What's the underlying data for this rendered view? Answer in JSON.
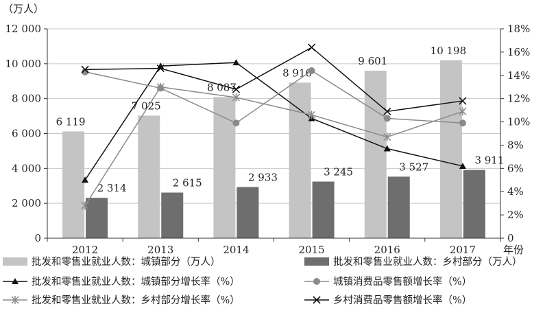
{
  "chart_data": {
    "type": "bar+line",
    "unit_label": "（万人）",
    "xlabel": "年份",
    "categories": [
      "2012",
      "2013",
      "2014",
      "2015",
      "2016",
      "2017"
    ],
    "y_left": {
      "lim": [
        0,
        12000
      ],
      "ticks": [
        "0",
        "2 000",
        "4 000",
        "6 000",
        "8 000",
        "10 000",
        "12 000"
      ],
      "values": [
        0,
        2000,
        4000,
        6000,
        8000,
        10000,
        12000
      ]
    },
    "y_right": {
      "lim": [
        0,
        18
      ],
      "ticks": [
        "0",
        "2%",
        "4%",
        "6%",
        "8%",
        "10%",
        "12%",
        "14%",
        "16%",
        "18%"
      ],
      "values": [
        0,
        2,
        4,
        6,
        8,
        10,
        12,
        14,
        16,
        18
      ]
    },
    "bar_series": [
      {
        "name": "批发和零售业就业人数：城镇部分（万人）",
        "color": "#c4c4c4",
        "values": [
          6119,
          7025,
          8087,
          8916,
          9601,
          10198
        ],
        "labels": [
          "6 119",
          "7 025",
          "8 087",
          "8 916",
          "9 601",
          "10 198"
        ]
      },
      {
        "name": "批发和零售业就业人数：乡村部分（万人）",
        "color": "#6e6e6e",
        "values": [
          2314,
          2615,
          2933,
          3245,
          3527,
          3911
        ],
        "labels": [
          "2 314",
          "2 615",
          "2 933",
          "3 245",
          "3 527",
          "3 911"
        ]
      }
    ],
    "line_series": [
      {
        "name": "批发和零售业就业人数：城镇部分增长率（%）",
        "color": "#111111",
        "marker": "triangle",
        "values": [
          5.0,
          14.8,
          15.1,
          10.3,
          7.7,
          6.2
        ]
      },
      {
        "name": "城镇消费品零售额增长率（%）",
        "color": "#8a8a8a",
        "marker": "circle",
        "values": [
          14.3,
          12.9,
          9.9,
          14.4,
          10.3,
          9.9
        ]
      },
      {
        "name": "批发和零售业就业人数：乡村部分增长率（%）",
        "color": "#8a8a8a",
        "marker": "star",
        "values": [
          2.8,
          13.0,
          12.1,
          10.6,
          8.7,
          10.9
        ]
      },
      {
        "name": "乡村消费品零售额增长率（%）",
        "color": "#111111",
        "marker": "x",
        "values": [
          14.5,
          14.6,
          12.8,
          16.4,
          10.9,
          11.8
        ]
      }
    ],
    "grid": true
  }
}
